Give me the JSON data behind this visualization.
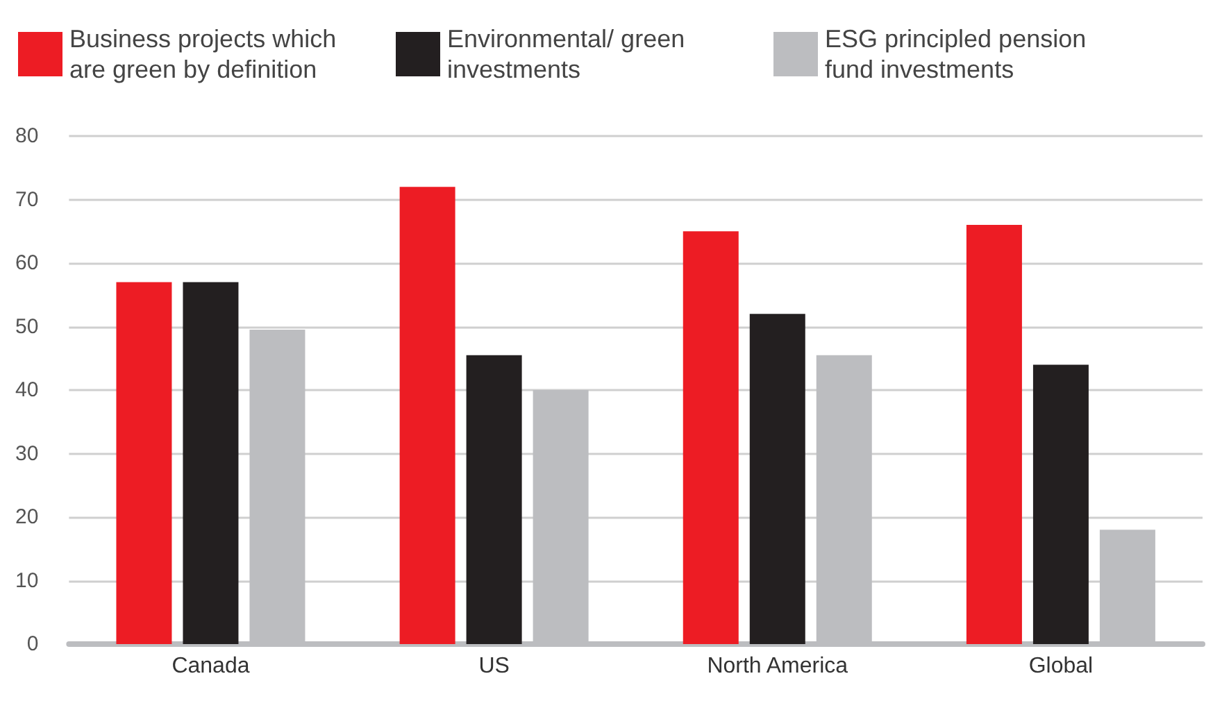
{
  "chart_data": {
    "type": "bar",
    "categories": [
      "Canada",
      "US",
      "North America",
      "Global"
    ],
    "series": [
      {
        "name": "Business projects which are green by definition",
        "color": "#ed1c24",
        "values": [
          57,
          72,
          65,
          66
        ]
      },
      {
        "name": "Environmental/ green investments",
        "color": "#231f20",
        "values": [
          57,
          45.5,
          52,
          44
        ]
      },
      {
        "name": "ESG principled pension fund investments",
        "color": "#bcbdc0",
        "values": [
          49.5,
          40,
          45.5,
          18
        ]
      }
    ],
    "ylim": [
      0,
      80
    ],
    "yticks": [
      0,
      10,
      20,
      30,
      40,
      50,
      60,
      70,
      80
    ],
    "grid": "y",
    "legend": "top left"
  }
}
